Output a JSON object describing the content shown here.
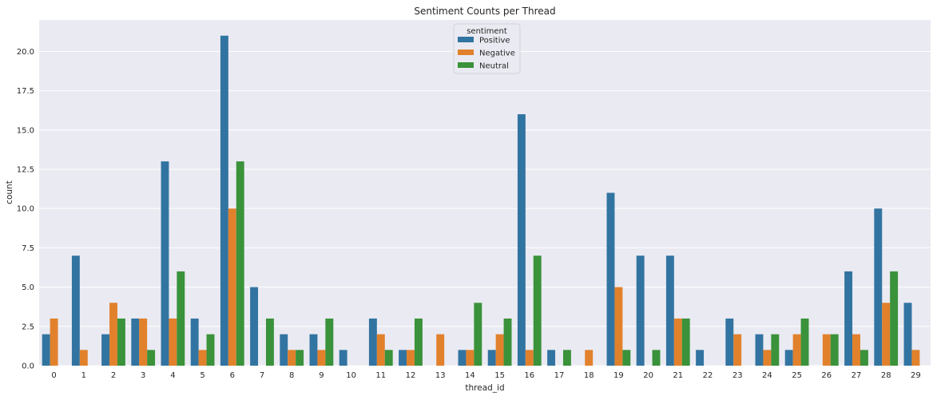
{
  "chart_data": {
    "type": "bar",
    "title": "Sentiment Counts per Thread",
    "xlabel": "thread_id",
    "ylabel": "count",
    "ylim": [
      0,
      22
    ],
    "yticks": [
      "0.0",
      "2.5",
      "5.0",
      "7.5",
      "10.0",
      "12.5",
      "15.0",
      "17.5",
      "20.0"
    ],
    "grid": true,
    "legend": {
      "title": "sentiment",
      "placement": "top-center"
    },
    "categories": [
      "0",
      "1",
      "2",
      "3",
      "4",
      "5",
      "6",
      "7",
      "8",
      "9",
      "10",
      "11",
      "12",
      "13",
      "14",
      "15",
      "16",
      "17",
      "18",
      "19",
      "20",
      "21",
      "22",
      "23",
      "24",
      "25",
      "26",
      "27",
      "28",
      "29"
    ],
    "series": [
      {
        "name": "Positive",
        "color": "#3274a1",
        "values": [
          2,
          7,
          2,
          3,
          13,
          3,
          21,
          5,
          2,
          2,
          1,
          3,
          1,
          0,
          1,
          1,
          16,
          1,
          0,
          11,
          7,
          7,
          1,
          3,
          2,
          1,
          0,
          6,
          10,
          4
        ]
      },
      {
        "name": "Negative",
        "color": "#e1812c",
        "values": [
          3,
          1,
          4,
          3,
          3,
          1,
          10,
          0,
          1,
          1,
          0,
          2,
          1,
          2,
          1,
          2,
          1,
          0,
          1,
          5,
          0,
          3,
          0,
          2,
          1,
          2,
          2,
          2,
          4,
          1
        ]
      },
      {
        "name": "Neutral",
        "color": "#3a923a",
        "values": [
          0,
          0,
          3,
          1,
          6,
          2,
          13,
          3,
          1,
          3,
          0,
          1,
          3,
          0,
          4,
          3,
          7,
          1,
          0,
          1,
          1,
          3,
          0,
          0,
          2,
          3,
          2,
          1,
          6,
          0
        ]
      }
    ]
  }
}
